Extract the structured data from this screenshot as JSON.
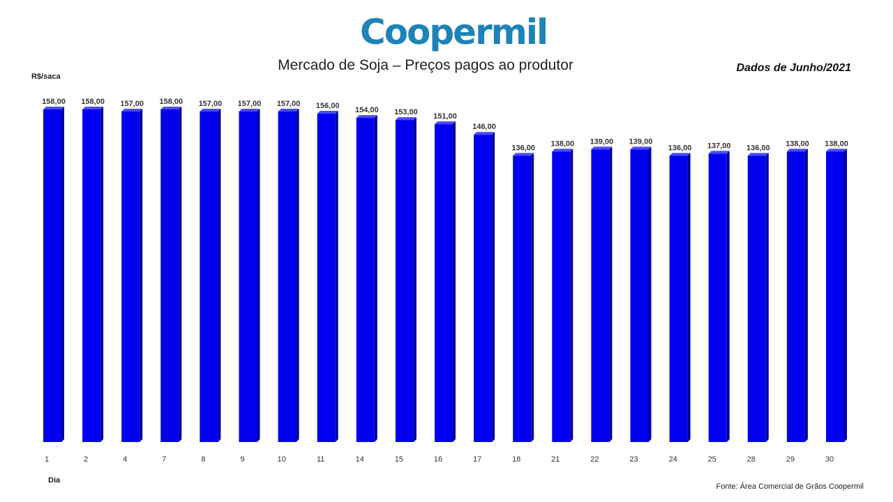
{
  "logo_text": "Coopermil",
  "colors": {
    "brand": "#1d83b8",
    "bar_front": "#0000ee",
    "bar_side": "#00009a",
    "bar_top": "#4a4aff"
  },
  "chart_data": {
    "type": "bar",
    "title": "Mercado de Soja – Preços pagos ao produtor",
    "subtitle": "Dados de Junho/2021",
    "ylabel": "R$/saca",
    "xlabel": "Dia",
    "source": "Fonte: Área Comercial de Grãos Coopermil",
    "categories": [
      "1",
      "2",
      "4",
      "7",
      "8",
      "9",
      "10",
      "11",
      "14",
      "15",
      "16",
      "17",
      "18",
      "21",
      "22",
      "23",
      "24",
      "25",
      "28",
      "29",
      "30"
    ],
    "values": [
      158,
      158,
      157,
      158,
      157,
      157,
      157,
      156,
      154,
      153,
      151,
      146,
      136,
      138,
      139,
      139,
      136,
      137,
      136,
      138,
      138
    ],
    "value_labels": [
      "158,00",
      "158,00",
      "157,00",
      "158,00",
      "157,00",
      "157,00",
      "157,00",
      "156,00",
      "154,00",
      "153,00",
      "151,00",
      "146,00",
      "136,00",
      "138,00",
      "139,00",
      "139,00",
      "136,00",
      "137,00",
      "136,00",
      "138,00",
      "138,00"
    ],
    "ylim": [
      0,
      158
    ],
    "grid": false,
    "legend": "none"
  }
}
